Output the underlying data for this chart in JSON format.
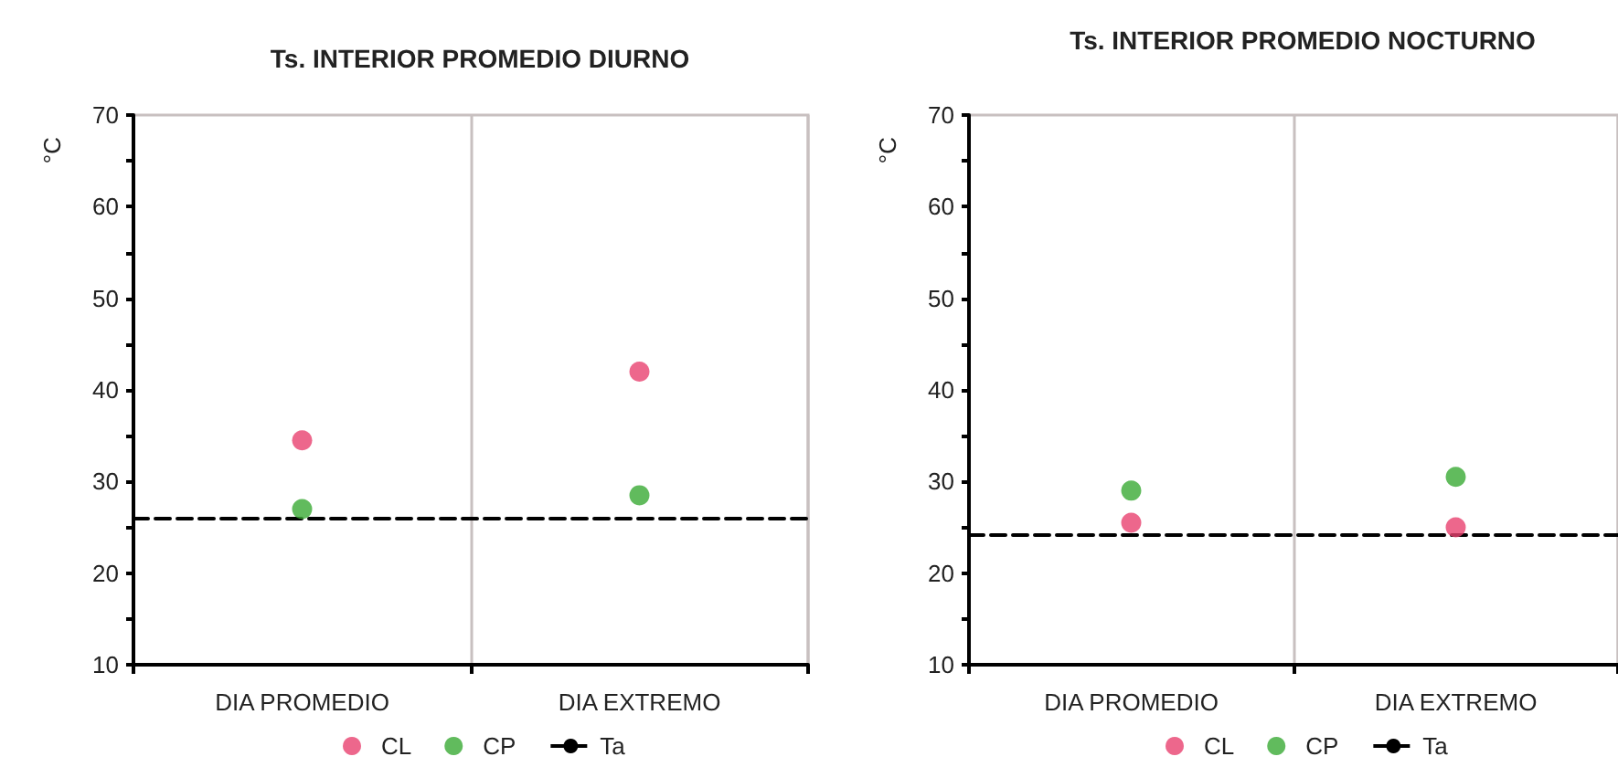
{
  "chart_data": [
    {
      "type": "scatter",
      "title": "Ts. INTERIOR PROMEDIO DIURNO",
      "ylabel": "°C",
      "categories": [
        "DIA PROMEDIO",
        "DIA EXTREMO"
      ],
      "ylim": [
        10,
        70
      ],
      "yticks": [
        10,
        {
          "value": 15,
          "label": null
        },
        20,
        {
          "value": 25,
          "label": null
        },
        30,
        {
          "value": 35,
          "label": null
        },
        40,
        {
          "value": 45,
          "label": null
        },
        50,
        {
          "value": 55,
          "label": null
        },
        60,
        {
          "value": 65,
          "label": null
        },
        70
      ],
      "grid": "x",
      "legend": "bottom",
      "marker": "circle",
      "series": [
        {
          "name": "CL",
          "color": "#e8416f",
          "values": [
            34.5,
            42
          ]
        },
        {
          "name": "CP",
          "color": "#3aaa35",
          "values": [
            27,
            28.5
          ]
        }
      ],
      "ref_lines": [
        {
          "axis": "y",
          "value": 26,
          "label": "Ta",
          "color": "#000000",
          "line_style": "dashed"
        }
      ]
    },
    {
      "type": "scatter",
      "title": "Ts. INTERIOR PROMEDIO NOCTURNO",
      "ylabel": "°C",
      "categories": [
        "DIA PROMEDIO",
        "DIA EXTREMO"
      ],
      "ylim": [
        10,
        70
      ],
      "yticks": [
        10,
        {
          "value": 15,
          "label": null
        },
        20,
        {
          "value": 25,
          "label": null
        },
        30,
        {
          "value": 35,
          "label": null
        },
        40,
        {
          "value": 45,
          "label": null
        },
        50,
        {
          "value": 55,
          "label": null
        },
        60,
        {
          "value": 65,
          "label": null
        },
        70
      ],
      "grid": "x",
      "legend": "bottom",
      "marker": "circle",
      "series": [
        {
          "name": "CL",
          "color": "#e8416f",
          "values": [
            25.5,
            25
          ]
        },
        {
          "name": "CP",
          "color": "#3aaa35",
          "values": [
            29,
            30.5
          ]
        }
      ],
      "ref_lines": [
        {
          "axis": "y",
          "value": 24.2,
          "label": "Ta",
          "color": "#000000",
          "line_style": "dashed"
        }
      ]
    }
  ]
}
